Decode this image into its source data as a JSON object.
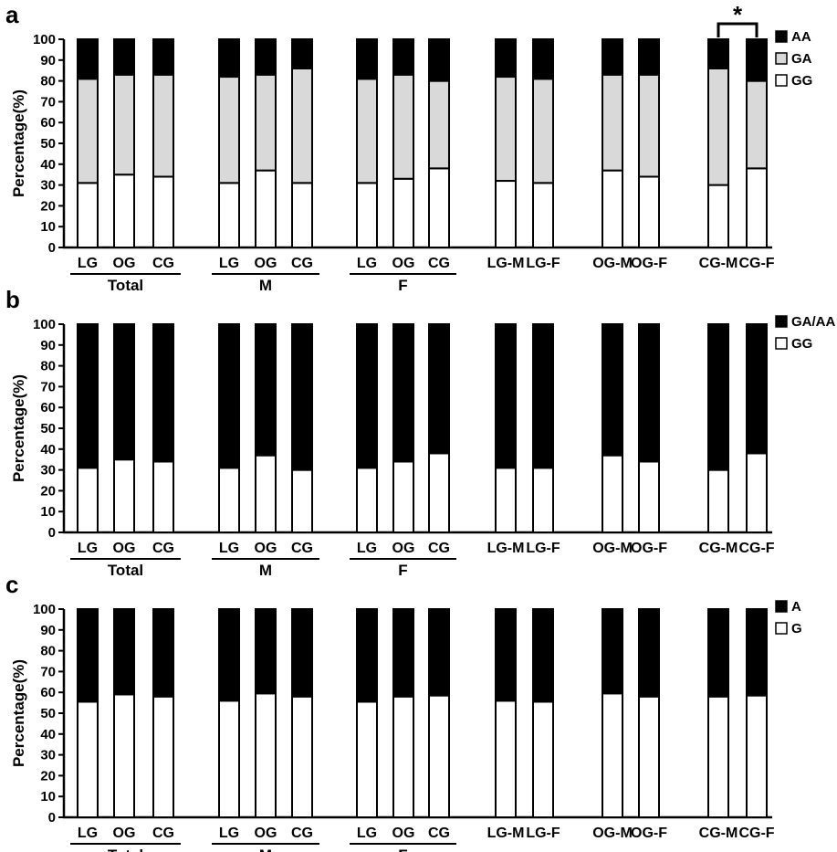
{
  "chart_data": [
    {
      "panel": "a",
      "type": "bar",
      "stacked": true,
      "ylabel": "Percentage(%)",
      "ylim": [
        0,
        100
      ],
      "yticks": [
        "0",
        "10",
        "20",
        "30",
        "40",
        "50",
        "60",
        "70",
        "80",
        "90",
        "100"
      ],
      "categories": [
        "LG",
        "OG",
        "CG",
        "LG",
        "OG",
        "CG",
        "LG",
        "OG",
        "CG",
        "LG-M",
        "LG-F",
        "OG-M",
        "OG-F",
        "CG-M",
        "CG-F"
      ],
      "group_labels": [
        "Total",
        "M",
        "F"
      ],
      "legend_position": "right",
      "series": [
        {
          "name": "GG",
          "color": "#ffffff",
          "values": [
            31,
            35,
            34,
            31,
            37,
            31,
            31,
            33,
            38,
            32,
            31,
            37,
            34,
            30,
            38
          ]
        },
        {
          "name": "GA",
          "color": "#d9d9d9",
          "values": [
            50,
            48,
            49,
            51,
            46,
            55,
            50,
            50,
            42,
            50,
            50,
            46,
            49,
            56,
            42
          ]
        },
        {
          "name": "AA",
          "color": "#000000",
          "values": [
            19,
            17,
            17,
            18,
            17,
            14,
            19,
            17,
            20,
            18,
            19,
            17,
            17,
            14,
            20
          ]
        }
      ],
      "significance": {
        "label": "*",
        "between": [
          "CG-M",
          "CG-F"
        ]
      }
    },
    {
      "panel": "b",
      "type": "bar",
      "stacked": true,
      "ylabel": "Percentage(%)",
      "ylim": [
        0,
        100
      ],
      "yticks": [
        "0",
        "10",
        "20",
        "30",
        "40",
        "50",
        "60",
        "70",
        "80",
        "90",
        "100"
      ],
      "categories": [
        "LG",
        "OG",
        "CG",
        "LG",
        "OG",
        "CG",
        "LG",
        "OG",
        "CG",
        "LG-M",
        "LG-F",
        "OG-M",
        "OG-F",
        "CG-M",
        "CG-F"
      ],
      "group_labels": [
        "Total",
        "M",
        "F"
      ],
      "legend_position": "right",
      "series": [
        {
          "name": "GG",
          "color": "#ffffff",
          "values": [
            31,
            35,
            34,
            31,
            37,
            30,
            31,
            34,
            38,
            31,
            31,
            37,
            34,
            30,
            38
          ]
        },
        {
          "name": "GA/AA",
          "color": "#000000",
          "values": [
            69,
            65,
            66,
            69,
            63,
            70,
            69,
            66,
            62,
            69,
            69,
            63,
            66,
            70,
            62
          ]
        }
      ]
    },
    {
      "panel": "c",
      "type": "bar",
      "stacked": true,
      "ylabel": "Percentage(%)",
      "ylim": [
        0,
        100
      ],
      "yticks": [
        "0",
        "10",
        "20",
        "30",
        "40",
        "50",
        "60",
        "70",
        "80",
        "90",
        "100"
      ],
      "categories": [
        "LG",
        "OG",
        "CG",
        "LG",
        "OG",
        "CG",
        "LG",
        "OG",
        "CG",
        "LG-M",
        "LG-F",
        "OG-M",
        "OG-F",
        "CG-M",
        "CG-F"
      ],
      "group_labels": [
        "Total",
        "M",
        "F"
      ],
      "legend_position": "right",
      "series": [
        {
          "name": "G",
          "color": "#ffffff",
          "values": [
            55.5,
            59,
            58,
            56,
            59.5,
            58,
            55.5,
            58,
            58.5,
            56,
            55.5,
            59.5,
            58,
            58,
            58.5
          ]
        },
        {
          "name": "A",
          "color": "#000000",
          "values": [
            44.5,
            41,
            42,
            44,
            40.5,
            42,
            44.5,
            42,
            41.5,
            44,
            44.5,
            40.5,
            42,
            42,
            41.5
          ]
        }
      ]
    }
  ]
}
